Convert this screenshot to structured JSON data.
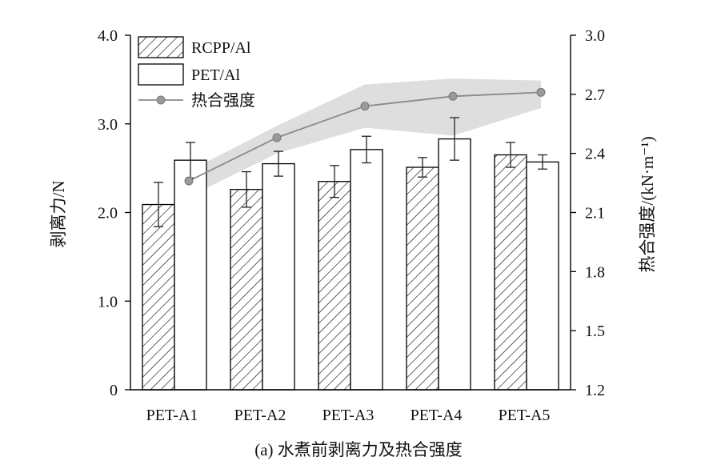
{
  "chart_data": {
    "type": "bar",
    "caption": "(a) 水煮前剥离力及热合强度",
    "categories": [
      "PET-A1",
      "PET-A2",
      "PET-A3",
      "PET-A4",
      "PET-A5"
    ],
    "series": [
      {
        "name": "RCPP/Al",
        "kind": "bar",
        "axis": "left",
        "pattern": "hatch",
        "values": [
          2.09,
          2.26,
          2.35,
          2.51,
          2.65
        ],
        "errors": [
          0.25,
          0.2,
          0.18,
          0.11,
          0.14
        ]
      },
      {
        "name": "PET/Al",
        "kind": "bar",
        "axis": "left",
        "pattern": "white",
        "values": [
          2.59,
          2.55,
          2.71,
          2.83,
          2.57
        ],
        "errors": [
          0.2,
          0.14,
          0.15,
          0.24,
          0.08
        ]
      },
      {
        "name": "热合强度",
        "kind": "line",
        "axis": "right",
        "values": [
          2.26,
          2.48,
          2.64,
          2.69,
          2.71
        ],
        "band_low": [
          2.18,
          2.4,
          2.53,
          2.49,
          2.63
        ],
        "band_high": [
          2.31,
          2.54,
          2.75,
          2.78,
          2.77
        ]
      }
    ],
    "y_left": {
      "label": "剥离力/N",
      "ylim": [
        0,
        4.0
      ],
      "ticks": [
        "0",
        "1.0",
        "2.0",
        "3.0",
        "4.0"
      ]
    },
    "y_right": {
      "label": "热合强度/(kN·m⁻¹)",
      "ylim": [
        1.2,
        3.0
      ],
      "ticks": [
        "1.2",
        "1.5",
        "1.8",
        "2.1",
        "2.4",
        "2.7",
        "3.0"
      ]
    },
    "legend_position": "top-left",
    "grid": false,
    "colors": {
      "bar_edge": "#000000",
      "line": "#8a8a8a",
      "marker": "#9a9a9a",
      "band": "#dcdcdc"
    }
  }
}
